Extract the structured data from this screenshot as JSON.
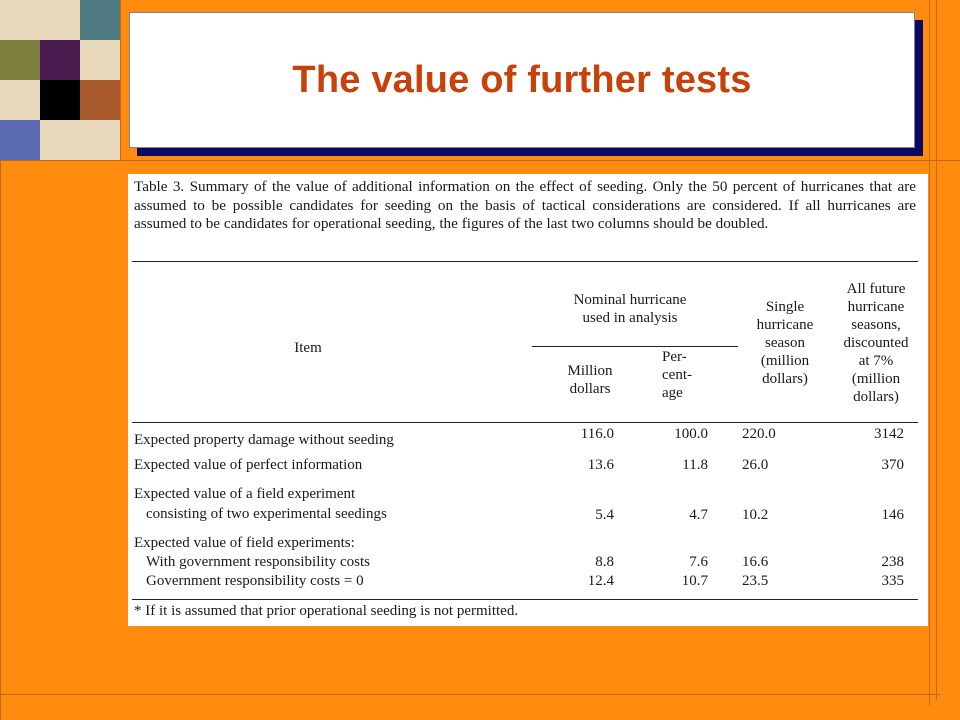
{
  "slide": {
    "title": "The value of further tests",
    "colors": {
      "background": "#FF8C0F",
      "title_text": "#C8400A",
      "title_shadow": "#0A0A60"
    }
  },
  "table": {
    "caption": "Table 3. Summary of the value of additional information on the effect of seeding. Only the 50 percent of hurricanes that are assumed to be possible candidates for seeding on the basis of tactical considerations are considered. If all hurricanes are assumed to be candidates for operational seeding, the figures of the last two columns should be doubled.",
    "headers": {
      "item": "Item",
      "group": [
        "Nominal hurricane",
        "used in analysis"
      ],
      "million": [
        "Million",
        "dollars"
      ],
      "percent": [
        "Per-",
        "cent-",
        "age"
      ],
      "single": [
        "Single",
        "hurricane",
        "season",
        "(million",
        "dollars)"
      ],
      "future": [
        "All future",
        "hurricane",
        "seasons,",
        "discounted",
        "at 7%",
        "(million",
        "dollars)"
      ]
    },
    "rows": [
      {
        "item": "Expected property damage without seeding",
        "million": "116.0",
        "percent": "100.0",
        "single": "220.0",
        "future": "3142"
      },
      {
        "item": "Expected value of perfect information",
        "million": "13.6",
        "percent": "11.8",
        "single": "26.0",
        "future": "370"
      },
      {
        "item": "Expected value of a field experiment",
        "million": "",
        "percent": "",
        "single": "",
        "future": ""
      },
      {
        "item": "consisting of two experimental seedings",
        "million": "5.4",
        "percent": "4.7",
        "single": "10.2",
        "future": "146"
      },
      {
        "item": "Expected value of field experiments:",
        "million": "",
        "percent": "",
        "single": "",
        "future": ""
      },
      {
        "item": "With government responsibility costs",
        "million": "8.8",
        "percent": "7.6",
        "single": "16.6",
        "future": "238"
      },
      {
        "item": "Government responsibility costs = 0",
        "million": "12.4",
        "percent": "10.7",
        "single": "23.5",
        "future": "335"
      }
    ],
    "footnote": "* If it is assumed that prior operational seeding is not permitted."
  }
}
